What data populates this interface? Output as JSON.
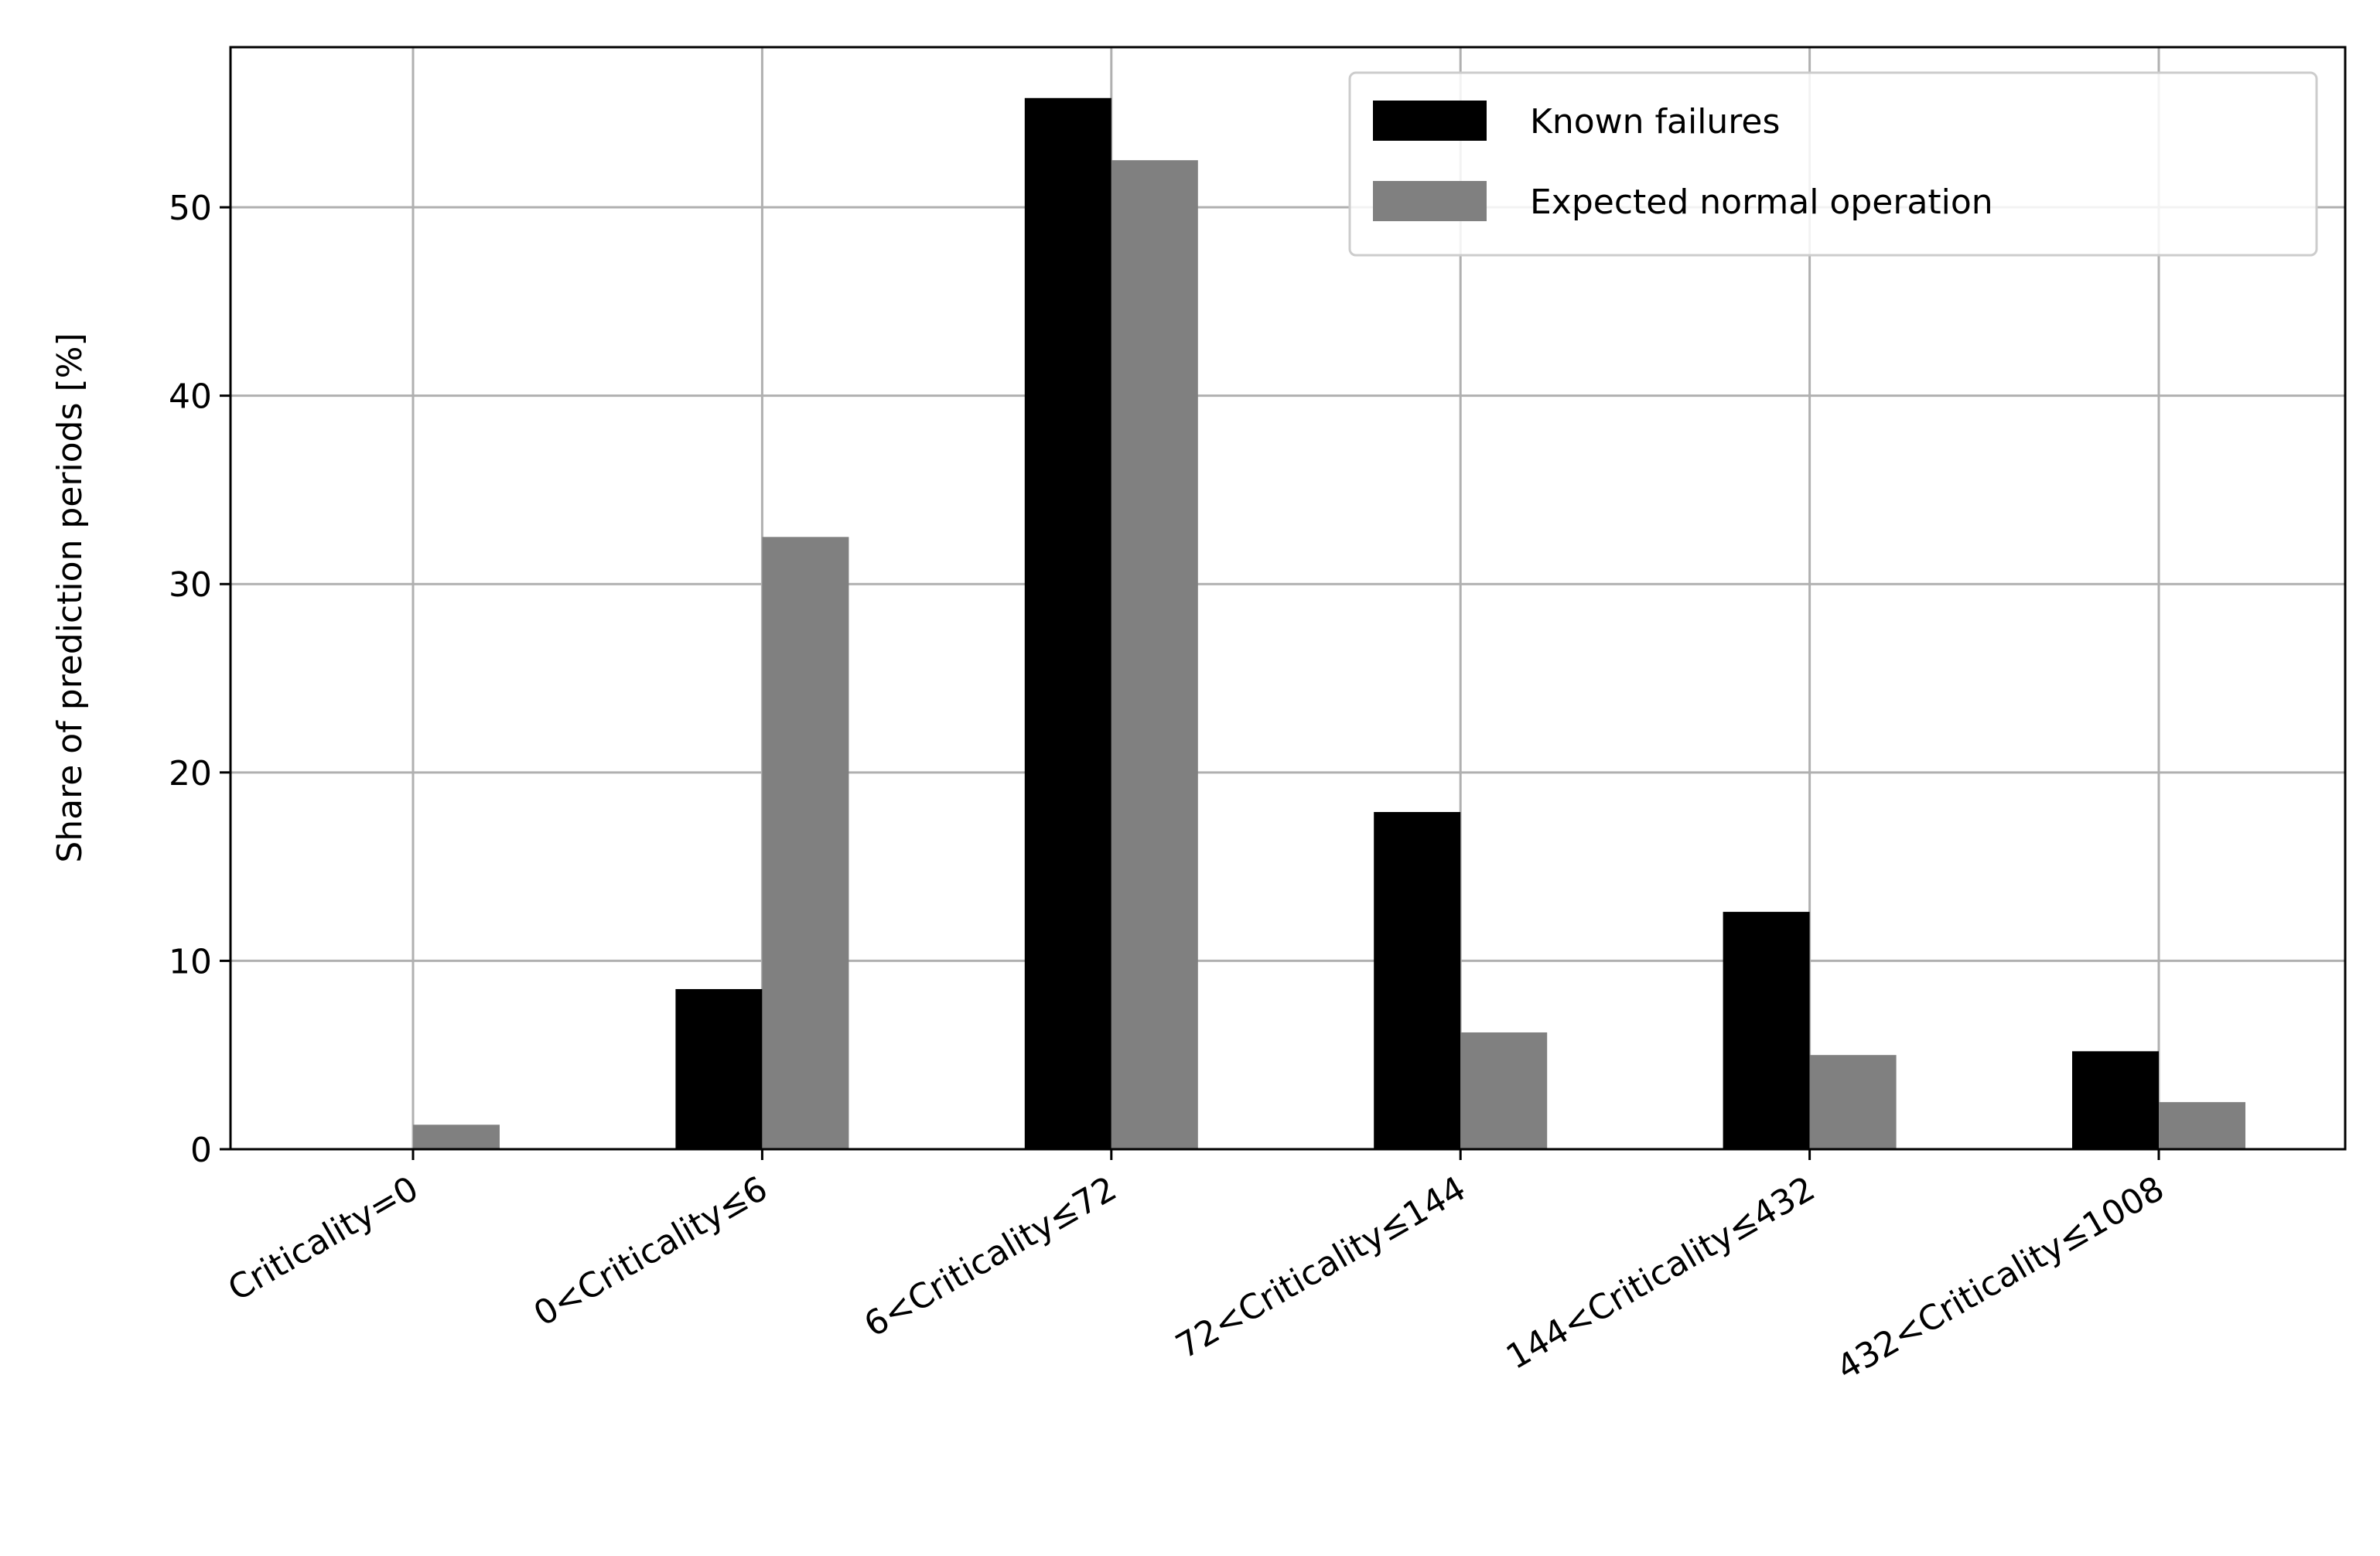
{
  "chart_data": {
    "type": "bar",
    "y_label": "Share of prediction periods [%]",
    "categories": [
      "Criticality=0",
      "0<Criticality≤6",
      "6<Criticality≤72",
      "72<Criticality≤144",
      "144<Criticality≤432",
      "432<Criticality≤1008"
    ],
    "series": [
      {
        "name": "Known failures",
        "color": "#000000",
        "values": [
          0,
          8.5,
          55.8,
          17.9,
          12.6,
          5.2
        ]
      },
      {
        "name": "Expected normal operation",
        "color": "#808080",
        "values": [
          1.3,
          32.5,
          52.5,
          6.2,
          5.0,
          2.5
        ]
      }
    ],
    "ylim": [
      0,
      58.5
    ],
    "yticks": [
      0,
      10,
      20,
      30,
      40,
      50
    ],
    "grid": true,
    "legend": "upper right"
  }
}
